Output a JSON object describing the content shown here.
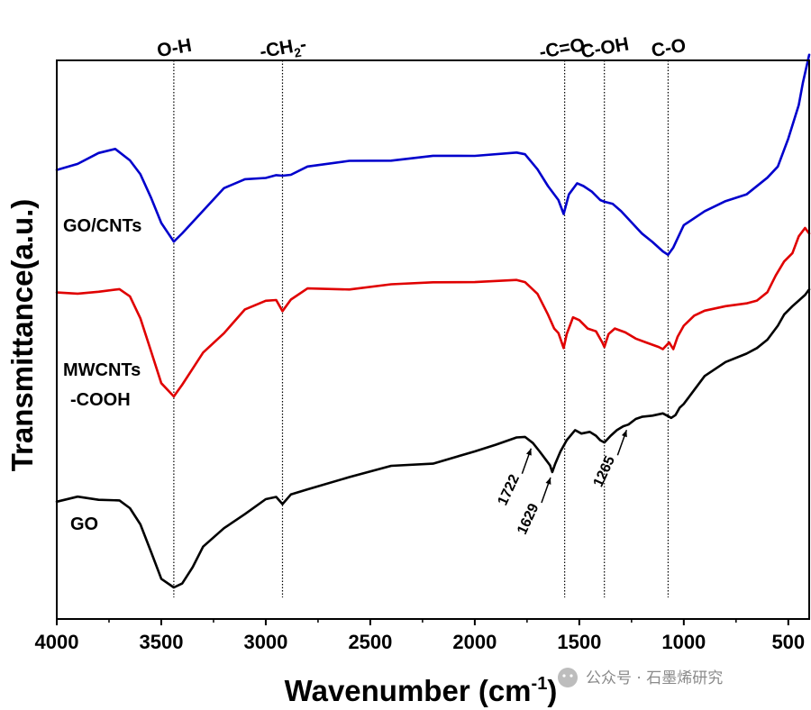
{
  "chart_data": {
    "type": "line",
    "title": "",
    "xlabel": "Wavenumber (cm",
    "xlabel_sup": "-1",
    "xlabel_close": ")",
    "ylabel": "Transmittance(a.u.)",
    "xlim": [
      4000,
      400
    ],
    "ylim": [
      0,
      100
    ],
    "x_ticks": [
      4000,
      3500,
      3000,
      2500,
      2000,
      1500,
      1000,
      500
    ],
    "x_tick_labels": [
      "4000",
      "3500",
      "3000",
      "2500",
      "2000",
      "1500",
      "1000",
      "500"
    ],
    "reference_lines": [
      {
        "x": 3440,
        "label": "O-H",
        "sub": ""
      },
      {
        "x": 2920,
        "label": "-CH",
        "sub": "2",
        "suffix": "-"
      },
      {
        "x": 1570,
        "label": "-C=O-",
        "sub": ""
      },
      {
        "x": 1380,
        "label": "C-OH",
        "sub": ""
      },
      {
        "x": 1075,
        "label": "C-O",
        "sub": ""
      }
    ],
    "annotations": [
      {
        "text": "1722",
        "x": 1722
      },
      {
        "text": "1629",
        "x": 1629
      },
      {
        "text": "1265",
        "x": 1265
      }
    ],
    "series": [
      {
        "name": "GO/CNTs",
        "color": "#0000cc",
        "points": [
          [
            4000,
            80.5
          ],
          [
            3900,
            81.8
          ],
          [
            3800,
            83
          ],
          [
            3720,
            84.5
          ],
          [
            3650,
            82.5
          ],
          [
            3600,
            80
          ],
          [
            3550,
            75.5
          ],
          [
            3500,
            70.5
          ],
          [
            3440,
            68
          ],
          [
            3400,
            69
          ],
          [
            3300,
            73.5
          ],
          [
            3200,
            76.8
          ],
          [
            3100,
            78.6
          ],
          [
            3000,
            79.4
          ],
          [
            2950,
            79.6
          ],
          [
            2920,
            78.9
          ],
          [
            2880,
            79.6
          ],
          [
            2800,
            80.8
          ],
          [
            2600,
            81.8
          ],
          [
            2400,
            82.5
          ],
          [
            2200,
            82.6
          ],
          [
            2000,
            82.9
          ],
          [
            1800,
            83.5
          ],
          [
            1760,
            83.2
          ],
          [
            1700,
            80.5
          ],
          [
            1650,
            77.5
          ],
          [
            1600,
            75
          ],
          [
            1575,
            72.5
          ],
          [
            1550,
            76
          ],
          [
            1510,
            78
          ],
          [
            1480,
            77.5
          ],
          [
            1440,
            76.5
          ],
          [
            1400,
            75
          ],
          [
            1380,
            74.7
          ],
          [
            1340,
            74.3
          ],
          [
            1300,
            73
          ],
          [
            1250,
            71
          ],
          [
            1200,
            69
          ],
          [
            1150,
            67.5
          ],
          [
            1100,
            65.8
          ],
          [
            1075,
            65.2
          ],
          [
            1050,
            66.5
          ],
          [
            1000,
            70.5
          ],
          [
            900,
            73
          ],
          [
            800,
            74.8
          ],
          [
            700,
            76
          ],
          [
            600,
            79
          ],
          [
            550,
            81
          ],
          [
            500,
            86
          ],
          [
            450,
            92
          ],
          [
            430,
            96
          ],
          [
            400,
            101
          ]
        ]
      },
      {
        "name": "MWCNTs",
        "name2": "-COOH",
        "color": "#e00000",
        "points": [
          [
            4000,
            58
          ],
          [
            3900,
            58.5
          ],
          [
            3800,
            58.8
          ],
          [
            3700,
            58.6
          ],
          [
            3650,
            57.5
          ],
          [
            3600,
            54
          ],
          [
            3550,
            48.5
          ],
          [
            3500,
            42.5
          ],
          [
            3440,
            39.8
          ],
          [
            3400,
            41.5
          ],
          [
            3350,
            44.5
          ],
          [
            3300,
            47.8
          ],
          [
            3200,
            51.5
          ],
          [
            3100,
            55
          ],
          [
            3000,
            57
          ],
          [
            2950,
            57.5
          ],
          [
            2920,
            55.2
          ],
          [
            2880,
            57.6
          ],
          [
            2800,
            58.8
          ],
          [
            2600,
            59.4
          ],
          [
            2400,
            59.8
          ],
          [
            2200,
            60
          ],
          [
            2000,
            60.3
          ],
          [
            1800,
            60.7
          ],
          [
            1760,
            60.3
          ],
          [
            1700,
            58.2
          ],
          [
            1650,
            54.5
          ],
          [
            1620,
            52
          ],
          [
            1600,
            51.2
          ],
          [
            1575,
            48.5
          ],
          [
            1560,
            51
          ],
          [
            1530,
            54
          ],
          [
            1500,
            53.5
          ],
          [
            1460,
            52
          ],
          [
            1420,
            51.5
          ],
          [
            1390,
            49.5
          ],
          [
            1380,
            48.7
          ],
          [
            1360,
            51
          ],
          [
            1330,
            52
          ],
          [
            1280,
            51.3
          ],
          [
            1230,
            50.2
          ],
          [
            1180,
            49.5
          ],
          [
            1120,
            48.7
          ],
          [
            1100,
            48.3
          ],
          [
            1070,
            49.5
          ],
          [
            1050,
            48.3
          ],
          [
            1030,
            50.5
          ],
          [
            1000,
            52.5
          ],
          [
            950,
            54.3
          ],
          [
            900,
            55.2
          ],
          [
            800,
            56
          ],
          [
            700,
            56.5
          ],
          [
            650,
            57
          ],
          [
            600,
            58.5
          ],
          [
            560,
            61.5
          ],
          [
            520,
            64
          ],
          [
            480,
            65.5
          ],
          [
            450,
            68.5
          ],
          [
            420,
            70
          ],
          [
            400,
            69
          ]
        ]
      },
      {
        "name": "GO",
        "color": "#000000",
        "points": [
          [
            4000,
            21
          ],
          [
            3900,
            21.5
          ],
          [
            3800,
            21.7
          ],
          [
            3700,
            21.3
          ],
          [
            3650,
            19.5
          ],
          [
            3600,
            16.5
          ],
          [
            3550,
            12
          ],
          [
            3500,
            7.5
          ],
          [
            3440,
            5.2
          ],
          [
            3400,
            6.5
          ],
          [
            3350,
            9
          ],
          [
            3300,
            12.5
          ],
          [
            3200,
            16.5
          ],
          [
            3100,
            19
          ],
          [
            3000,
            21
          ],
          [
            2950,
            21.6
          ],
          [
            2920,
            21
          ],
          [
            2880,
            22.1
          ],
          [
            2800,
            23.5
          ],
          [
            2600,
            25.5
          ],
          [
            2400,
            27
          ],
          [
            2200,
            28.2
          ],
          [
            2000,
            30
          ],
          [
            1900,
            31.2
          ],
          [
            1800,
            32.5
          ],
          [
            1760,
            32.6
          ],
          [
            1722,
            31.5
          ],
          [
            1690,
            30
          ],
          [
            1660,
            28.5
          ],
          [
            1640,
            27.5
          ],
          [
            1629,
            26.3
          ],
          [
            1615,
            27.8
          ],
          [
            1590,
            30
          ],
          [
            1560,
            32
          ],
          [
            1520,
            33.8
          ],
          [
            1490,
            33.2
          ],
          [
            1450,
            33.5
          ],
          [
            1420,
            32.8
          ],
          [
            1400,
            32
          ],
          [
            1380,
            31.6
          ],
          [
            1350,
            32.8
          ],
          [
            1320,
            33.8
          ],
          [
            1290,
            34.5
          ],
          [
            1265,
            34.8
          ],
          [
            1230,
            35.8
          ],
          [
            1200,
            36.2
          ],
          [
            1150,
            36.4
          ],
          [
            1100,
            36.8
          ],
          [
            1080,
            36.4
          ],
          [
            1060,
            36
          ],
          [
            1040,
            36.5
          ],
          [
            1020,
            37.8
          ],
          [
            1000,
            38.5
          ],
          [
            950,
            41
          ],
          [
            900,
            43.5
          ],
          [
            800,
            46
          ],
          [
            700,
            47.5
          ],
          [
            650,
            48.5
          ],
          [
            600,
            50
          ],
          [
            550,
            52.5
          ],
          [
            520,
            54.5
          ],
          [
            480,
            56
          ],
          [
            450,
            57
          ],
          [
            420,
            58
          ],
          [
            400,
            59
          ]
        ]
      }
    ]
  },
  "watermark": "公众号 · 石墨烯研究"
}
